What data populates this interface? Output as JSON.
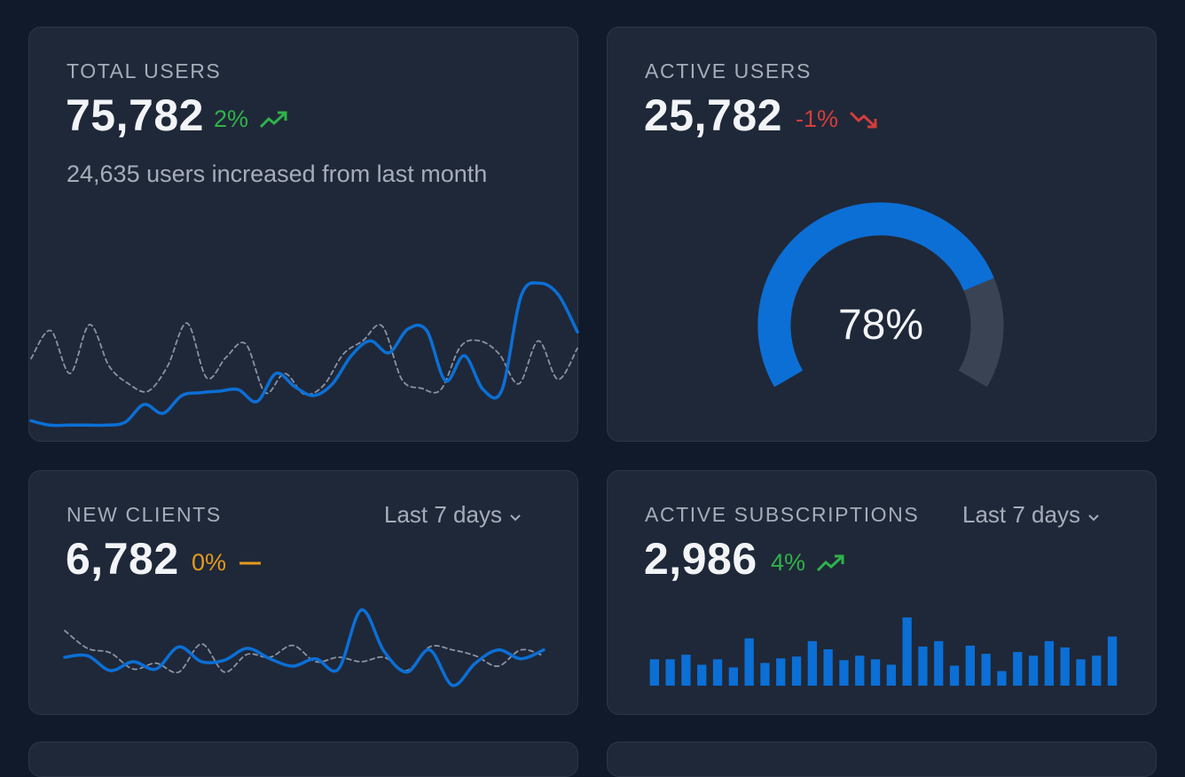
{
  "cards": {
    "total_users": {
      "label": "TOTAL USERS",
      "value": "75,782",
      "trend_text": "2%",
      "trend_direction": "up",
      "subtext": "24,635 users increased from last month"
    },
    "active_users": {
      "label": "ACTIVE USERS",
      "value": "25,782",
      "trend_text": "-1%",
      "trend_direction": "down",
      "gauge_value": 78,
      "gauge_text": "78%"
    },
    "new_clients": {
      "label": "NEW CLIENTS",
      "value": "6,782",
      "trend_text": "0%",
      "trend_direction": "flat",
      "period": "Last 7 days"
    },
    "active_subscriptions": {
      "label": "ACTIVE SUBSCRIPTIONS",
      "value": "2,986",
      "trend_text": "4%",
      "trend_direction": "up",
      "period": "Last 7 days"
    }
  },
  "colors": {
    "background": "#111a2a",
    "card": "#1f2838",
    "accent": "#0b6fd6",
    "gauge_track": "#3a4353",
    "up": "#2eb34a",
    "down": "#d33d3d",
    "flat": "#e59a1c",
    "compare_line": "#8a93a3"
  },
  "icons": {
    "up": "trend-up-icon",
    "down": "trend-down-icon",
    "flat": "trend-flat-icon",
    "dropdown": "chevron-down-icon"
  },
  "chart_data": [
    {
      "type": "line",
      "series": [
        {
          "values": [
            10,
            7,
            7,
            7,
            7,
            9,
            21,
            15,
            27,
            29,
            30,
            31,
            23,
            42,
            33,
            27,
            35,
            54,
            64,
            56,
            72,
            71,
            37,
            54,
            31,
            31,
            94,
            103,
            95,
            70
          ]
        },
        {
          "values": [
            52,
            71,
            42,
            75,
            47,
            35,
            30,
            47,
            76,
            39,
            53,
            62,
            29,
            42,
            28,
            34,
            55,
            64,
            74,
            38,
            32,
            31,
            60,
            64,
            55,
            35,
            64,
            38,
            59
          ]
        }
      ],
      "ylim": [
        0,
        120
      ]
    },
    {
      "type": "line",
      "series": [
        {
          "values": [
            24,
            25,
            15,
            21,
            16,
            31,
            21,
            22,
            30,
            23,
            18,
            23,
            16,
            56,
            28,
            14,
            29,
            5,
            20,
            29,
            23,
            29
          ]
        },
        {
          "values": [
            42,
            30,
            27,
            16,
            20,
            14,
            33,
            14,
            26,
            24,
            32,
            21,
            24,
            21,
            24,
            15,
            31,
            29,
            25,
            18,
            29,
            25
          ]
        }
      ],
      "ylim": [
        0,
        60
      ]
    },
    {
      "type": "bar",
      "values": [
        29,
        29,
        34,
        23,
        29,
        20,
        52,
        25,
        30,
        32,
        49,
        40,
        28,
        33,
        29,
        23,
        75,
        43,
        49,
        22,
        44,
        35,
        16,
        37,
        33,
        49,
        42,
        29,
        33,
        54
      ],
      "ylim": [
        0,
        80
      ]
    }
  ]
}
